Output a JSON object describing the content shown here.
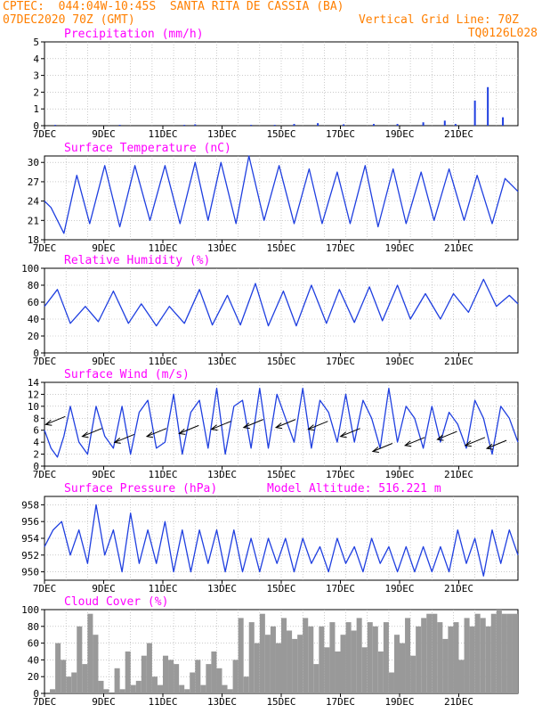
{
  "header": {
    "line1": "CPTEC:  044:04W-10:45S  SANTA RITA DE CASSIA (BA)",
    "line2_left": "07DEC2020 70Z (GMT)",
    "line2_right": "Vertical Grid Line: 70Z",
    "line3_right": "TQ0126L028"
  },
  "colors": {
    "header": "#ff7f00",
    "title": "#ff00ff",
    "line": "#1f3fe0",
    "bar": "#999999",
    "arrow": "#000000"
  },
  "chart_data": [
    {
      "type": "bar",
      "title": "Precipitation (mm/h)",
      "ylim": [
        0,
        5
      ],
      "yticks": [
        0,
        1,
        2,
        3,
        4,
        5
      ],
      "xticks": [
        "7DEC",
        "9DEC",
        "11DEC",
        "13DEC",
        "15DEC",
        "17DEC",
        "19DEC",
        "21DEC"
      ],
      "grid": true,
      "x": [
        0.5,
        3.5,
        6.5,
        7.0,
        9.6,
        10.7,
        11.6,
        12.7,
        13.9,
        15.3,
        16.4,
        17.6,
        18.6,
        19.1,
        20.0,
        20.6,
        21.3
      ],
      "values": [
        0.05,
        0.05,
        0.05,
        0.08,
        0.05,
        0.05,
        0.1,
        0.15,
        0.08,
        0.1,
        0.1,
        0.2,
        0.3,
        0.1,
        1.5,
        2.3,
        0.5
      ]
    },
    {
      "type": "line",
      "title": "Surface Temperature (nC)",
      "ylim": [
        18,
        31
      ],
      "yticks": [
        18,
        21,
        24,
        27,
        30
      ],
      "xticks": [
        "7DEC",
        "9DEC",
        "11DEC",
        "13DEC",
        "15DEC",
        "17DEC",
        "19DEC",
        "21DEC"
      ],
      "grid": true,
      "x": [
        0,
        0.3,
        0.9,
        1.5,
        2.1,
        2.8,
        3.5,
        4.2,
        4.9,
        5.6,
        6.3,
        7.0,
        7.6,
        8.2,
        8.9,
        9.5,
        10.2,
        10.9,
        11.6,
        12.3,
        12.9,
        13.6,
        14.2,
        14.9,
        15.5,
        16.2,
        16.8,
        17.5,
        18.1,
        18.8,
        19.5,
        20.1,
        20.8,
        21.4,
        22.0
      ],
      "values": [
        24,
        23,
        19,
        28,
        20.5,
        29.5,
        20,
        29.5,
        21,
        29.5,
        20.5,
        30,
        21,
        30,
        20.5,
        31,
        21,
        29.5,
        20.5,
        29,
        20.5,
        28.5,
        20.5,
        29.5,
        20,
        29,
        20.5,
        28.5,
        21,
        29,
        21,
        28,
        20.5,
        27.5,
        25.5
      ]
    },
    {
      "type": "line",
      "title": "Relative Humidity (%)",
      "ylim": [
        0,
        100
      ],
      "yticks": [
        0,
        20,
        40,
        60,
        80,
        100
      ],
      "xticks": [
        "7DEC",
        "9DEC",
        "11DEC",
        "13DEC",
        "15DEC",
        "17DEC",
        "19DEC",
        "21DEC"
      ],
      "grid": true,
      "x": [
        0,
        0.6,
        1.2,
        1.9,
        2.5,
        3.2,
        3.9,
        4.5,
        5.2,
        5.8,
        6.5,
        7.2,
        7.8,
        8.5,
        9.1,
        9.8,
        10.4,
        11.1,
        11.7,
        12.4,
        13.1,
        13.7,
        14.4,
        15.1,
        15.7,
        16.4,
        17.0,
        17.7,
        18.4,
        19.0,
        19.7,
        20.4,
        21.0,
        21.6,
        22.0
      ],
      "values": [
        55,
        75,
        35,
        55,
        37,
        73,
        35,
        58,
        32,
        55,
        35,
        75,
        33,
        68,
        33,
        82,
        32,
        73,
        32,
        80,
        35,
        75,
        36,
        78,
        38,
        80,
        40,
        70,
        40,
        70,
        48,
        87,
        55,
        68,
        58
      ]
    },
    {
      "type": "line",
      "title": "Surface Wind (m/s)",
      "ylim": [
        0,
        14
      ],
      "yticks": [
        0,
        2,
        4,
        6,
        8,
        10,
        12,
        14
      ],
      "xticks": [
        "7DEC",
        "9DEC",
        "11DEC",
        "13DEC",
        "15DEC",
        "17DEC",
        "19DEC",
        "21DEC"
      ],
      "grid": true,
      "x": [
        0,
        0.3,
        0.6,
        0.9,
        1.2,
        1.6,
        2.0,
        2.4,
        2.8,
        3.2,
        3.6,
        4.0,
        4.4,
        4.8,
        5.2,
        5.6,
        6.0,
        6.4,
        6.8,
        7.2,
        7.6,
        8.0,
        8.4,
        8.8,
        9.2,
        9.6,
        10.0,
        10.4,
        10.8,
        11.2,
        11.6,
        12.0,
        12.4,
        12.8,
        13.2,
        13.6,
        14.0,
        14.4,
        14.8,
        15.2,
        15.6,
        16.0,
        16.4,
        16.8,
        17.2,
        17.6,
        18.0,
        18.4,
        18.8,
        19.2,
        19.6,
        20.0,
        20.4,
        20.8,
        21.2,
        21.6,
        22.0
      ],
      "values": [
        6,
        3,
        1.5,
        5,
        10,
        4,
        2,
        10,
        5,
        3,
        10,
        2,
        9,
        11,
        3,
        4,
        12,
        2,
        9,
        11,
        3,
        13,
        2,
        10,
        11,
        3,
        13,
        3,
        12,
        8,
        4,
        13,
        3,
        11,
        9,
        4,
        12,
        4,
        11,
        8,
        3,
        13,
        4,
        10,
        8,
        3,
        10,
        4,
        9,
        7,
        3,
        11,
        8,
        2,
        10,
        8,
        4
      ],
      "arrows": [
        [
          0.8,
          8
        ],
        [
          2.5,
          6
        ],
        [
          4.0,
          5
        ],
        [
          5.5,
          6
        ],
        [
          7.0,
          6.5
        ],
        [
          8.5,
          7.2
        ],
        [
          10.0,
          7.5
        ],
        [
          11.5,
          7.5
        ],
        [
          13.0,
          7.2
        ],
        [
          14.5,
          6
        ],
        [
          16.0,
          3.5
        ],
        [
          17.5,
          4.5
        ],
        [
          19.0,
          5.5
        ],
        [
          20.3,
          4.5
        ],
        [
          21.3,
          4
        ]
      ]
    },
    {
      "type": "line",
      "title": "Surface Pressure (hPa)",
      "subtitle": "Model Altitude: 516.221 m",
      "ylim": [
        949,
        959
      ],
      "yticks": [
        950,
        952,
        954,
        956,
        958
      ],
      "xticks": [
        "7DEC",
        "9DEC",
        "11DEC",
        "13DEC",
        "15DEC",
        "17DEC",
        "19DEC",
        "21DEC"
      ],
      "grid": true,
      "x": [
        0,
        0.4,
        0.8,
        1.2,
        1.6,
        2.0,
        2.4,
        2.8,
        3.2,
        3.6,
        4.0,
        4.4,
        4.8,
        5.2,
        5.6,
        6.0,
        6.4,
        6.8,
        7.2,
        7.6,
        8.0,
        8.4,
        8.8,
        9.2,
        9.6,
        10.0,
        10.4,
        10.8,
        11.2,
        11.6,
        12.0,
        12.4,
        12.8,
        13.2,
        13.6,
        14.0,
        14.4,
        14.8,
        15.2,
        15.6,
        16.0,
        16.4,
        16.8,
        17.2,
        17.6,
        18.0,
        18.4,
        18.8,
        19.2,
        19.6,
        20.0,
        20.4,
        20.8,
        21.2,
        21.6,
        22.0
      ],
      "values": [
        953,
        955,
        956,
        952,
        955,
        951,
        958,
        952,
        955,
        950,
        957,
        951,
        955,
        951,
        956,
        950,
        955,
        950,
        955,
        951,
        955,
        950,
        955,
        950,
        954,
        950,
        954,
        951,
        954,
        950,
        954,
        951,
        953,
        950,
        954,
        951,
        953,
        950,
        954,
        951,
        953,
        950,
        953,
        950,
        953,
        950,
        953,
        950,
        955,
        951,
        954,
        949.5,
        955,
        951,
        955,
        952
      ]
    },
    {
      "type": "bar",
      "title": "Cloud Cover (%)",
      "ylim": [
        0,
        100
      ],
      "yticks": [
        0,
        20,
        40,
        60,
        80,
        100
      ],
      "xticks": [
        "7DEC",
        "9DEC",
        "11DEC",
        "13DEC",
        "15DEC",
        "17DEC",
        "19DEC",
        "21DEC"
      ],
      "grid": true,
      "x": [
        0,
        0.25,
        0.5,
        0.75,
        1.0,
        1.25,
        1.5,
        1.75,
        2.0,
        2.25,
        2.5,
        2.75,
        3.0,
        3.25,
        3.5,
        3.75,
        4.0,
        4.25,
        4.5,
        4.75,
        5.0,
        5.25,
        5.5,
        5.75,
        6.0,
        6.25,
        6.5,
        6.75,
        7.0,
        7.25,
        7.5,
        7.75,
        8.0,
        8.25,
        8.5,
        8.75,
        9.0,
        9.25,
        9.5,
        9.75,
        10.0,
        10.25,
        10.5,
        10.75,
        11.0,
        11.25,
        11.5,
        11.75,
        12.0,
        12.25,
        12.5,
        12.75,
        13.0,
        13.25,
        13.5,
        13.75,
        14.0,
        14.25,
        14.5,
        14.75,
        15.0,
        15.25,
        15.5,
        15.75,
        16.0,
        16.25,
        16.5,
        16.75,
        17.0,
        17.25,
        17.5,
        17.75,
        18.0,
        18.25,
        18.5,
        18.75,
        19.0,
        19.25,
        19.5,
        19.75,
        20.0,
        20.25,
        20.5,
        20.75,
        21.0,
        21.25,
        21.5,
        21.75
      ],
      "values": [
        0,
        5,
        60,
        40,
        20,
        25,
        80,
        35,
        95,
        70,
        15,
        5,
        0,
        30,
        5,
        50,
        10,
        15,
        45,
        60,
        20,
        10,
        45,
        40,
        35,
        10,
        5,
        25,
        40,
        10,
        35,
        50,
        30,
        10,
        5,
        40,
        90,
        20,
        85,
        60,
        95,
        70,
        80,
        60,
        90,
        75,
        65,
        70,
        90,
        80,
        35,
        80,
        55,
        85,
        50,
        70,
        85,
        75,
        90,
        55,
        85,
        80,
        50,
        85,
        25,
        70,
        60,
        90,
        45,
        80,
        90,
        95,
        95,
        85,
        65,
        80,
        85,
        40,
        90,
        80,
        95,
        90,
        80,
        95,
        100,
        95,
        95,
        95
      ]
    }
  ]
}
